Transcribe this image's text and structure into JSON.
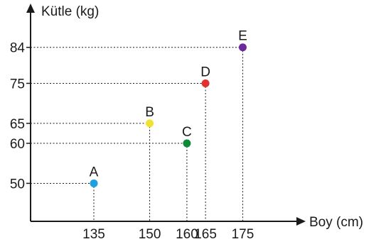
{
  "chart_data": {
    "type": "scatter",
    "xlabel": "Boy (cm)",
    "ylabel": "Kütle (kg)",
    "x_ticks": [
      135,
      150,
      160,
      165,
      175
    ],
    "y_ticks": [
      50,
      60,
      65,
      75,
      84
    ],
    "xlim": [
      118,
      190
    ],
    "ylim": [
      40.5,
      93
    ],
    "grid": false,
    "points": [
      {
        "label": "A",
        "x": 135,
        "y": 50,
        "color": "#1e9fe0"
      },
      {
        "label": "B",
        "x": 150,
        "y": 65,
        "color": "#f2e230"
      },
      {
        "label": "C",
        "x": 160,
        "y": 60,
        "color": "#0f8a3b"
      },
      {
        "label": "D",
        "x": 165,
        "y": 75,
        "color": "#e3312d"
      },
      {
        "label": "E",
        "x": 175,
        "y": 84,
        "color": "#6a2a9c"
      }
    ]
  }
}
